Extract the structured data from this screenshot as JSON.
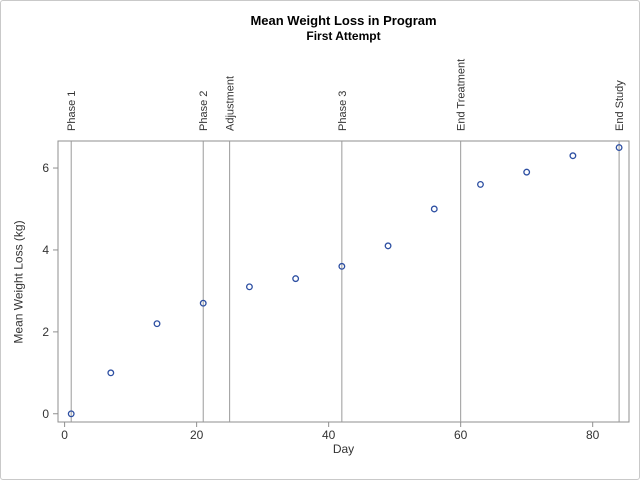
{
  "figure": {
    "title": "Mean Weight Loss in Program",
    "subtitle": "First Attempt"
  },
  "chart_data": {
    "type": "scatter",
    "title": "Mean Weight Loss in Program",
    "subtitle": "First Attempt",
    "xlabel": "Day",
    "ylabel": "Mean Weight Loss (kg)",
    "x": [
      1,
      7,
      14,
      21,
      28,
      35,
      42,
      49,
      56,
      63,
      70,
      77,
      84
    ],
    "y": [
      0.0,
      1.0,
      2.2,
      2.7,
      3.1,
      3.3,
      3.6,
      4.1,
      5.0,
      5.6,
      5.9,
      6.3,
      6.5
    ],
    "xlim": [
      -1,
      85.5
    ],
    "ylim": [
      -0.2,
      6.66
    ],
    "x_ticks": [
      0,
      20,
      40,
      60,
      80
    ],
    "y_ticks": [
      0,
      2,
      4,
      6
    ],
    "grid": false,
    "legend": false,
    "reference_lines": [
      {
        "label": "Phase 1",
        "x": 1
      },
      {
        "label": "Phase 2",
        "x": 21
      },
      {
        "label": "Adjustment",
        "x": 25
      },
      {
        "label": "Phase 3",
        "x": 42
      },
      {
        "label": "End Treatment",
        "x": 60
      },
      {
        "label": "End Study",
        "x": 84
      }
    ],
    "marker": {
      "shape": "open-circle",
      "color": "#2D4FA2"
    },
    "colors": {
      "frame_line": "#8f8f8f",
      "reference_line": "#9a9a9a",
      "tick_mark": "#8f8f8f",
      "tick_text": "#333333",
      "refline_label_text": "#333333",
      "plot_background": "#ffffff"
    }
  }
}
